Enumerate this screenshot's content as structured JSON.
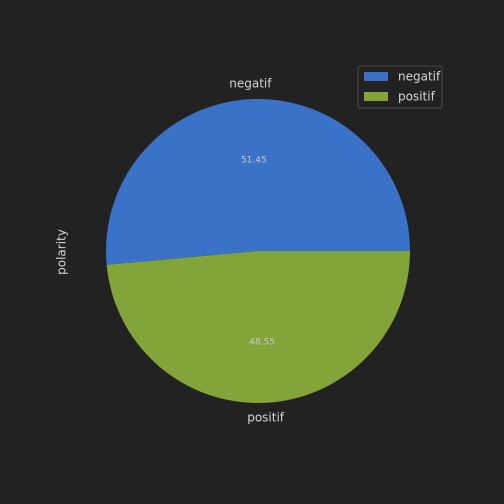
{
  "chart_data": {
    "type": "pie",
    "categories": [
      "negatif",
      "positif"
    ],
    "values": [
      51.45,
      48.55
    ],
    "value_labels": [
      "51.45",
      "48.55"
    ],
    "colors": [
      "#3a72c7",
      "#82a53a"
    ],
    "ylabel": "polarity",
    "legend": {
      "placement": "top-right",
      "entries": [
        "negatif",
        "positif"
      ]
    },
    "start_angle_deg": 180,
    "direction": "counterclockwise"
  },
  "theme": {
    "background": "#222222",
    "text_color": "#d6d6d6",
    "pct_text_color": "#c8c8c8",
    "legend_background": "#222222",
    "legend_border": "#4a4a4a"
  }
}
